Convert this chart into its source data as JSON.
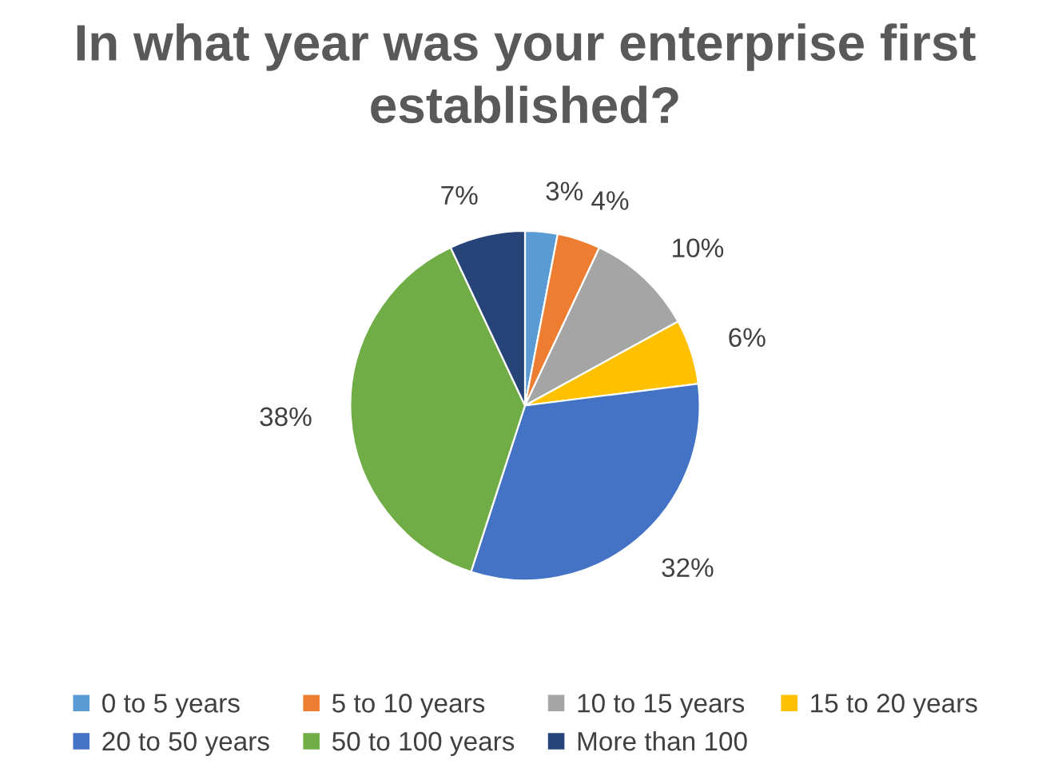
{
  "chart_data": {
    "type": "pie",
    "title": "In what year was your enterprise first established?",
    "categories": [
      "0 to 5 years",
      "5 to 10 years",
      "10 to 15 years",
      "15 to 20 years",
      "20 to 50 years",
      "50 to 100 years",
      "More than 100"
    ],
    "values": [
      3,
      4,
      10,
      6,
      32,
      38,
      7
    ],
    "colors": [
      "#5b9bd5",
      "#ed7d31",
      "#a5a5a5",
      "#ffc000",
      "#4472c4",
      "#70ad47",
      "#264478"
    ],
    "value_labels": [
      "3%",
      "4%",
      "10%",
      "6%",
      "32%",
      "38%",
      "7%"
    ],
    "legend": "bottom"
  }
}
